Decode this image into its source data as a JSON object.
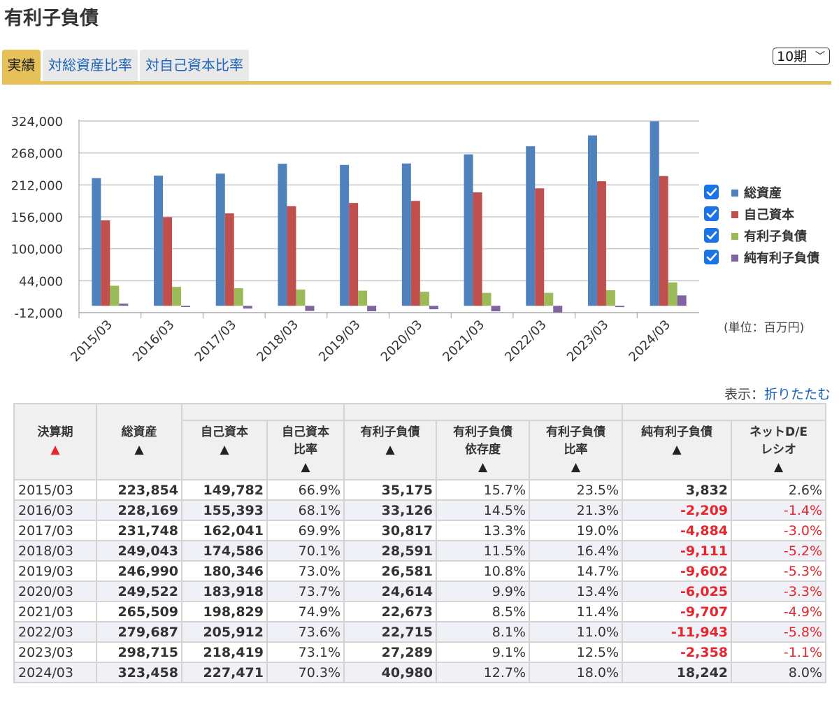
{
  "title": "有利子負債",
  "tabs": [
    {
      "label": "実績",
      "active": true
    },
    {
      "label": "対総資産比率",
      "active": false
    },
    {
      "label": "対自己資本比率",
      "active": false
    }
  ],
  "period_select": {
    "value": "10期",
    "icon": "chevron-down-icon"
  },
  "display_toggle": {
    "label": "表示：",
    "link": "折りたたむ"
  },
  "unit_label": "(単位：百万円)",
  "colors": {
    "assets": "#4f81bd",
    "equity": "#c0504d",
    "debt": "#9bbb59",
    "net_debt": "#8064a2",
    "negative": "#e8242c",
    "checkbox": "#1a73e8"
  },
  "chart_data": {
    "type": "bar",
    "categories": [
      "2015/03",
      "2016/03",
      "2017/03",
      "2018/03",
      "2019/03",
      "2020/03",
      "2021/03",
      "2022/03",
      "2023/03",
      "2024/03"
    ],
    "series": [
      {
        "name": "総資産",
        "color": "#4f81bd",
        "values": [
          223854,
          228169,
          231748,
          249043,
          246990,
          249522,
          265509,
          279687,
          298715,
          323458
        ]
      },
      {
        "name": "自己資本",
        "color": "#c0504d",
        "values": [
          149782,
          155393,
          162041,
          174586,
          180346,
          183918,
          198829,
          205912,
          218419,
          227471
        ]
      },
      {
        "name": "有利子負債",
        "color": "#9bbb59",
        "values": [
          35175,
          33126,
          30817,
          28591,
          26581,
          24614,
          22673,
          22715,
          27289,
          40980
        ]
      },
      {
        "name": "純有利子負債",
        "color": "#8064a2",
        "values": [
          3832,
          -2209,
          -4884,
          -9111,
          -9602,
          -6025,
          -9707,
          -11943,
          -2358,
          18242
        ]
      }
    ],
    "yticks": [
      "324,000",
      "268,000",
      "212,000",
      "156,000",
      "100,000",
      "44,000",
      "-12,000"
    ],
    "ylim": [
      -12000,
      324000
    ],
    "grid": true,
    "legend": "right"
  },
  "table": {
    "headers": {
      "period": "決算期",
      "assets": "総資産",
      "equity": "自己資本",
      "equity_ratio": [
        "自己資本",
        "比率"
      ],
      "debt": "有利子負債",
      "debt_dependency": [
        "有利子負債",
        "依存度"
      ],
      "debt_ratio": [
        "有利子負債",
        "比率"
      ],
      "net_debt": "純有利子負債",
      "net_de": [
        "ネットD/E",
        "レシオ"
      ],
      "sort_up": "▲"
    },
    "rows": [
      {
        "period": "2015/03",
        "assets": "223,854",
        "equity": "149,782",
        "equity_ratio": "66.9%",
        "debt": "35,175",
        "debt_dependency": "15.7%",
        "debt_ratio": "23.5%",
        "net_debt": "3,832",
        "net_de": "2.6%"
      },
      {
        "period": "2016/03",
        "assets": "228,169",
        "equity": "155,393",
        "equity_ratio": "68.1%",
        "debt": "33,126",
        "debt_dependency": "14.5%",
        "debt_ratio": "21.3%",
        "net_debt": "-2,209",
        "net_de": "-1.4%"
      },
      {
        "period": "2017/03",
        "assets": "231,748",
        "equity": "162,041",
        "equity_ratio": "69.9%",
        "debt": "30,817",
        "debt_dependency": "13.3%",
        "debt_ratio": "19.0%",
        "net_debt": "-4,884",
        "net_de": "-3.0%"
      },
      {
        "period": "2018/03",
        "assets": "249,043",
        "equity": "174,586",
        "equity_ratio": "70.1%",
        "debt": "28,591",
        "debt_dependency": "11.5%",
        "debt_ratio": "16.4%",
        "net_debt": "-9,111",
        "net_de": "-5.2%"
      },
      {
        "period": "2019/03",
        "assets": "246,990",
        "equity": "180,346",
        "equity_ratio": "73.0%",
        "debt": "26,581",
        "debt_dependency": "10.8%",
        "debt_ratio": "14.7%",
        "net_debt": "-9,602",
        "net_de": "-5.3%"
      },
      {
        "period": "2020/03",
        "assets": "249,522",
        "equity": "183,918",
        "equity_ratio": "73.7%",
        "debt": "24,614",
        "debt_dependency": "9.9%",
        "debt_ratio": "13.4%",
        "net_debt": "-6,025",
        "net_de": "-3.3%"
      },
      {
        "period": "2021/03",
        "assets": "265,509",
        "equity": "198,829",
        "equity_ratio": "74.9%",
        "debt": "22,673",
        "debt_dependency": "8.5%",
        "debt_ratio": "11.4%",
        "net_debt": "-9,707",
        "net_de": "-4.9%"
      },
      {
        "period": "2022/03",
        "assets": "279,687",
        "equity": "205,912",
        "equity_ratio": "73.6%",
        "debt": "22,715",
        "debt_dependency": "8.1%",
        "debt_ratio": "11.0%",
        "net_debt": "-11,943",
        "net_de": "-5.8%"
      },
      {
        "period": "2023/03",
        "assets": "298,715",
        "equity": "218,419",
        "equity_ratio": "73.1%",
        "debt": "27,289",
        "debt_dependency": "9.1%",
        "debt_ratio": "12.5%",
        "net_debt": "-2,358",
        "net_de": "-1.1%"
      },
      {
        "period": "2024/03",
        "assets": "323,458",
        "equity": "227,471",
        "equity_ratio": "70.3%",
        "debt": "40,980",
        "debt_dependency": "12.7%",
        "debt_ratio": "18.0%",
        "net_debt": "18,242",
        "net_de": "8.0%"
      }
    ]
  }
}
